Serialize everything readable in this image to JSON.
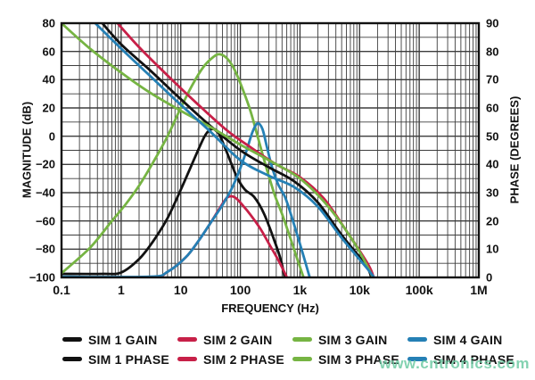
{
  "watermark": {
    "text": "www.cntronics.com",
    "color": "#6ecba4"
  },
  "colors": {
    "sim1": "#111111",
    "sim2": "#c72048",
    "sim3": "#76b443",
    "sim4": "#2580b5",
    "grid": "#3d3d3d",
    "frame": "#111111"
  },
  "legend": {
    "items": [
      {
        "label": "SIM 1 GAIN",
        "color": "#111111"
      },
      {
        "label": "SIM 2 GAIN",
        "color": "#c72048"
      },
      {
        "label": "SIM 3 GAIN",
        "color": "#76b443"
      },
      {
        "label": "SIM 4 GAIN",
        "color": "#2580b5"
      },
      {
        "label": "SIM 1 PHASE",
        "color": "#111111"
      },
      {
        "label": "SIM 2 PHASE",
        "color": "#c72048"
      },
      {
        "label": "SIM 3 PHASE",
        "color": "#76b443"
      },
      {
        "label": "SIM 4 PHASE",
        "color": "#2580b5"
      }
    ]
  },
  "chart_data": {
    "type": "line",
    "x_scale": "log",
    "xlabel": "FREQUENCY (Hz)",
    "x_range_hz": [
      0.1,
      1000000
    ],
    "x_tick_values": [
      0.1,
      1,
      10,
      100,
      1000,
      10000,
      100000,
      1000000
    ],
    "x_tick_labels": [
      "0.1",
      "1",
      "10",
      "100",
      "1k",
      "10k",
      "100k",
      "1M"
    ],
    "left_axis": {
      "label": "MAGNITUDE (dB)",
      "range": [
        -100,
        80
      ],
      "tick_values": [
        80,
        60,
        40,
        20,
        0,
        -20,
        -40,
        -60,
        -80,
        -100
      ],
      "tick_labels": [
        "80",
        "60",
        "40",
        "20",
        "0",
        "−20",
        "−40",
        "−60",
        "−80",
        "−100"
      ]
    },
    "right_axis": {
      "label": "PHASE (DEGREES)",
      "range": [
        0,
        90
      ],
      "tick_values": [
        90,
        80,
        70,
        60,
        50,
        40,
        30,
        20,
        10,
        0
      ],
      "tick_labels": [
        "90",
        "80",
        "70",
        "60",
        "50",
        "40",
        "30",
        "20",
        "10",
        "0"
      ]
    },
    "grid": {
      "vertical": "log decades with 2-9 minors",
      "horizontal": "every 10 dB / 10 deg"
    },
    "legend_position": "bottom",
    "series": [
      {
        "name": "SIM 1 GAIN",
        "axis": "magnitude",
        "unit": "dB",
        "color": "#111111",
        "points": [
          [
            0.1,
            -97.5
          ],
          [
            0.5,
            -97.5
          ],
          [
            1,
            -96.5
          ],
          [
            2,
            -87
          ],
          [
            3.5,
            -74
          ],
          [
            6,
            -58
          ],
          [
            10,
            -38
          ],
          [
            15,
            -21
          ],
          [
            20,
            -9
          ],
          [
            26,
            1
          ],
          [
            33,
            5
          ],
          [
            42,
            3
          ],
          [
            55,
            -8
          ],
          [
            70,
            -19
          ],
          [
            90,
            -30
          ],
          [
            120,
            -38
          ],
          [
            170,
            -43
          ],
          [
            250,
            -55
          ],
          [
            380,
            -75
          ],
          [
            480,
            -88
          ],
          [
            560,
            -101
          ]
        ]
      },
      {
        "name": "SIM 2 GAIN",
        "axis": "magnitude",
        "unit": "dB",
        "color": "#c72048",
        "points": [
          [
            0.1,
            -100
          ],
          [
            3,
            -100
          ],
          [
            6,
            -96
          ],
          [
            12,
            -86
          ],
          [
            20,
            -74
          ],
          [
            32,
            -61
          ],
          [
            45,
            -51
          ],
          [
            58,
            -44
          ],
          [
            70,
            -42.5
          ],
          [
            85,
            -44
          ],
          [
            110,
            -49
          ],
          [
            150,
            -56
          ],
          [
            220,
            -66
          ],
          [
            320,
            -78
          ],
          [
            450,
            -89
          ],
          [
            620,
            -101
          ]
        ]
      },
      {
        "name": "SIM 3 GAIN",
        "axis": "magnitude",
        "unit": "dB",
        "color": "#76b443",
        "points": [
          [
            0.1,
            -97
          ],
          [
            0.3,
            -79
          ],
          [
            0.7,
            -60
          ],
          [
            1.2,
            -48
          ],
          [
            2,
            -35
          ],
          [
            3.5,
            -18
          ],
          [
            6,
            0
          ],
          [
            10,
            20
          ],
          [
            16,
            37
          ],
          [
            24,
            49
          ],
          [
            35,
            56
          ],
          [
            45,
            58
          ],
          [
            60,
            55
          ],
          [
            80,
            47
          ],
          [
            110,
            33
          ],
          [
            150,
            17
          ],
          [
            200,
            -2
          ],
          [
            280,
            -24
          ],
          [
            380,
            -42
          ],
          [
            500,
            -55
          ],
          [
            700,
            -73
          ],
          [
            900,
            -87
          ],
          [
            1170,
            -101
          ]
        ]
      },
      {
        "name": "SIM 4 GAIN",
        "axis": "magnitude",
        "unit": "dB",
        "color": "#2580b5",
        "points": [
          [
            0.1,
            -99.5
          ],
          [
            3,
            -99.5
          ],
          [
            6,
            -96
          ],
          [
            12,
            -86
          ],
          [
            20,
            -74
          ],
          [
            32,
            -61
          ],
          [
            48,
            -50
          ],
          [
            70,
            -38
          ],
          [
            95,
            -25
          ],
          [
            125,
            -11
          ],
          [
            160,
            3
          ],
          [
            195,
            9
          ],
          [
            235,
            5
          ],
          [
            280,
            -8
          ],
          [
            340,
            -22
          ],
          [
            430,
            -34
          ],
          [
            560,
            -43
          ],
          [
            700,
            -55
          ],
          [
            900,
            -70
          ],
          [
            1150,
            -85
          ],
          [
            1480,
            -101
          ]
        ]
      },
      {
        "name": "SIM 1 PHASE",
        "axis": "phase",
        "unit": "deg",
        "color": "#111111",
        "points": [
          [
            0.44,
            91
          ],
          [
            1,
            82.5
          ],
          [
            3,
            73.5
          ],
          [
            9,
            64
          ],
          [
            30,
            54
          ],
          [
            100,
            45
          ],
          [
            300,
            39
          ],
          [
            800,
            34
          ],
          [
            2000,
            26.5
          ],
          [
            5000,
            15
          ],
          [
            13000,
            4
          ],
          [
            15800,
            -0.5
          ]
        ]
      },
      {
        "name": "SIM 2 PHASE",
        "axis": "phase",
        "unit": "deg",
        "color": "#c72048",
        "points": [
          [
            0.79,
            91
          ],
          [
            2,
            81.5
          ],
          [
            6,
            71.5
          ],
          [
            20,
            61
          ],
          [
            60,
            52
          ],
          [
            150,
            46
          ],
          [
            400,
            40
          ],
          [
            1000,
            35.5
          ],
          [
            2500,
            28
          ],
          [
            6000,
            16.5
          ],
          [
            14000,
            4.5
          ],
          [
            17500,
            -0.5
          ]
        ]
      },
      {
        "name": "SIM 3 PHASE",
        "axis": "phase",
        "unit": "deg",
        "color": "#76b443",
        "points": [
          [
            0.1,
            90
          ],
          [
            0.3,
            81
          ],
          [
            1,
            72.5
          ],
          [
            3,
            65.5
          ],
          [
            10,
            59
          ],
          [
            30,
            53.5
          ],
          [
            100,
            47
          ],
          [
            300,
            41.5
          ],
          [
            1000,
            35
          ],
          [
            3000,
            25
          ],
          [
            8000,
            12.5
          ],
          [
            15000,
            2
          ],
          [
            16800,
            -0.5
          ]
        ]
      },
      {
        "name": "SIM 4 PHASE",
        "axis": "phase",
        "unit": "deg",
        "color": "#2580b5",
        "points": [
          [
            0.33,
            91
          ],
          [
            1,
            81
          ],
          [
            3,
            71.5
          ],
          [
            9,
            62
          ],
          [
            30,
            52
          ],
          [
            100,
            41.5
          ],
          [
            300,
            36
          ],
          [
            800,
            32
          ],
          [
            2000,
            25
          ],
          [
            5000,
            14
          ],
          [
            13000,
            3.5
          ],
          [
            18200,
            -0.5
          ]
        ]
      }
    ]
  }
}
